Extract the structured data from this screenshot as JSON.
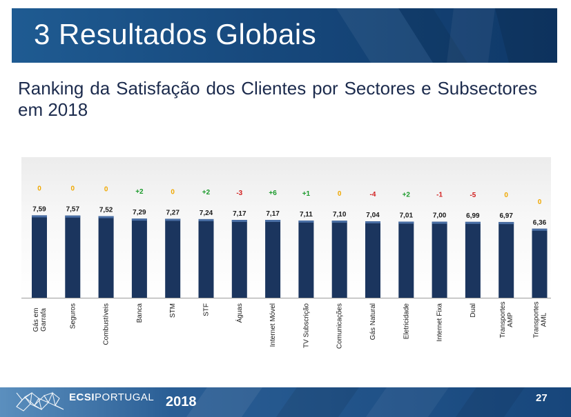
{
  "header": {
    "title": "3 Resultados Globais"
  },
  "subtitle": "Ranking da Satisfação dos Clientes por Sectores e Subsectores em 2018",
  "chart_data": {
    "type": "bar",
    "categories": [
      "Gás em Garrafa",
      "Seguros",
      "Combustíveis",
      "Banca",
      "STM",
      "STF",
      "Águas",
      "Internet Móvel",
      "TV Subscrição",
      "Comunicações",
      "Gás Natural",
      "Eletricidade",
      "Internet Fixa",
      "Dual",
      "Transportes AMP",
      "Transportes AML"
    ],
    "values": [
      7.59,
      7.57,
      7.52,
      7.29,
      7.27,
      7.24,
      7.17,
      7.17,
      7.11,
      7.1,
      7.04,
      7.01,
      7.0,
      6.99,
      6.97,
      6.36
    ],
    "value_labels": [
      "7,59",
      "7,57",
      "7,52",
      "7,29",
      "7,27",
      "7,24",
      "7,17",
      "7,17",
      "7,11",
      "7,10",
      "7,04",
      "7,01",
      "7,00",
      "6,99",
      "6,97",
      "6,36"
    ],
    "ranking_changes": [
      "0",
      "0",
      "0",
      "+2",
      "0",
      "+2",
      "-3",
      "+6",
      "+1",
      "0",
      "-4",
      "+2",
      "-1",
      "-5",
      "0",
      "0"
    ],
    "change_colors": {
      "positive": "#1a9a2a",
      "negative": "#d21f1f",
      "neutral": "#f0a800"
    },
    "bar_color": "#1b355e",
    "grid": false
  },
  "footer": {
    "brand_bold": "ECSI",
    "brand_light": "PORTUGAL",
    "year": "2018",
    "page": "27",
    "logo_icon": "ecsi-network-logo-icon"
  }
}
